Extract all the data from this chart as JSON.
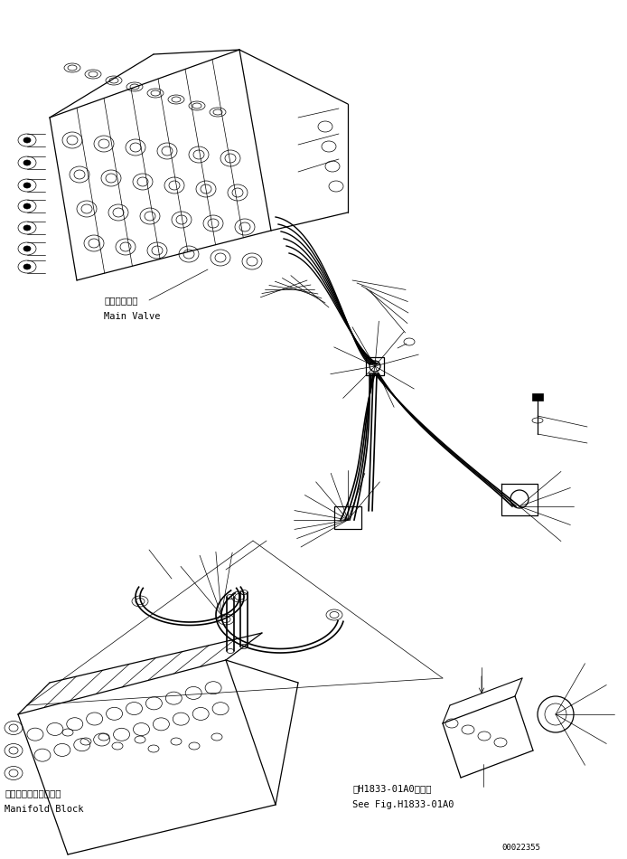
{
  "background_color": "#ffffff",
  "fig_width": 6.94,
  "fig_height": 9.5,
  "dpi": 100,
  "labels": {
    "main_valve_jp": "メインバルブ",
    "main_valve_en": "Main Valve",
    "manifold_jp": "マニホールドブロック",
    "manifold_en": "Manifold Block",
    "see_fig_jp": "第H1833-01A0図参照",
    "see_fig_en": "See Fig.H1833-01A0",
    "part_number": "00022355"
  },
  "text_color": "#000000",
  "line_color": "#000000",
  "lw_main": 0.9,
  "lw_thin": 0.5,
  "lw_hose": 1.2
}
